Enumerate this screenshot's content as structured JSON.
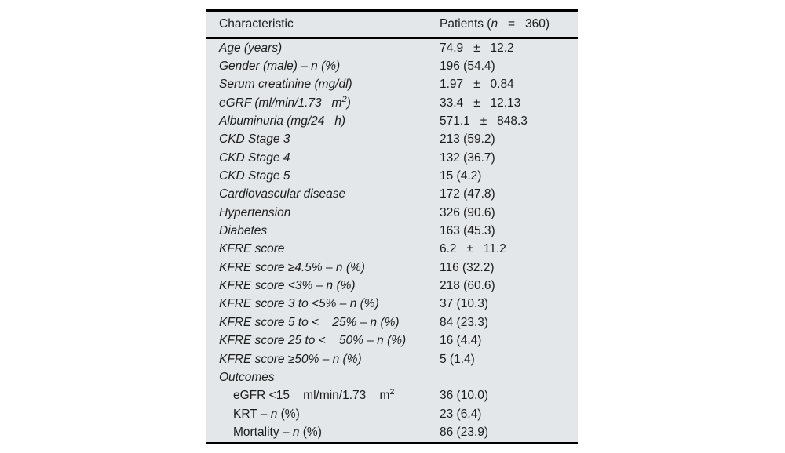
{
  "colors": {
    "table-bg": "#e3e7ea",
    "rule": "#000000",
    "text": "#1c1c1c"
  },
  "table": {
    "header": {
      "characteristic": "Characteristic",
      "patients_parts": [
        {
          "text": "Patients ("
        },
        {
          "text": "n",
          "italic": true
        },
        {
          "text": "   =   360)"
        }
      ]
    },
    "rows": [
      {
        "italic": true,
        "parts": [
          {
            "text": "Age (years)"
          }
        ],
        "value": "74.9   ±   12.2"
      },
      {
        "italic": true,
        "parts": [
          {
            "text": "Gender (male) – n (%)"
          }
        ],
        "value": "196 (54.4)"
      },
      {
        "italic": true,
        "parts": [
          {
            "text": "Serum creatinine (mg/dl)"
          }
        ],
        "value": "1.97   ±   0.84"
      },
      {
        "italic": true,
        "parts": [
          {
            "text": "eGRF (ml/min/1.73   m"
          },
          {
            "text": "2",
            "sup": true
          },
          {
            "text": ")"
          }
        ],
        "value": "33.4   ±   12.13"
      },
      {
        "italic": true,
        "parts": [
          {
            "text": "Albuminuria (mg/24   h)"
          }
        ],
        "value": "571.1   ±   848.3"
      },
      {
        "italic": true,
        "parts": [
          {
            "text": "CKD Stage 3"
          }
        ],
        "value": "213 (59.2)"
      },
      {
        "italic": true,
        "parts": [
          {
            "text": "CKD Stage 4"
          }
        ],
        "value": "132 (36.7)"
      },
      {
        "italic": true,
        "parts": [
          {
            "text": "CKD Stage 5"
          }
        ],
        "value": "15 (4.2)"
      },
      {
        "italic": true,
        "parts": [
          {
            "text": "Cardiovascular disease"
          }
        ],
        "value": "172 (47.8)"
      },
      {
        "italic": true,
        "parts": [
          {
            "text": "Hypertension"
          }
        ],
        "value": "326 (90.6)"
      },
      {
        "italic": true,
        "parts": [
          {
            "text": "Diabetes"
          }
        ],
        "value": "163 (45.3)"
      },
      {
        "italic": true,
        "parts": [
          {
            "text": "KFRE score"
          }
        ],
        "value": "6.2   ±   11.2"
      },
      {
        "italic": true,
        "parts": [
          {
            "text": "KFRE score ≥4.5% – n (%)"
          }
        ],
        "value": "116 (32.2)"
      },
      {
        "italic": true,
        "parts": [
          {
            "text": "KFRE score <3% – n (%)"
          }
        ],
        "value": "218 (60.6)"
      },
      {
        "italic": true,
        "parts": [
          {
            "text": "KFRE score 3 to <5% – n (%)"
          }
        ],
        "value": "37 (10.3)"
      },
      {
        "italic": true,
        "parts": [
          {
            "text": "KFRE score 5 to <    25% – n (%)"
          }
        ],
        "value": "84 (23.3)"
      },
      {
        "italic": true,
        "parts": [
          {
            "text": "KFRE score 25 to <    50% – n (%)"
          }
        ],
        "value": "16 (4.4)"
      },
      {
        "italic": true,
        "parts": [
          {
            "text": "KFRE score ≥50% – n (%)"
          }
        ],
        "value": "5 (1.4)"
      },
      {
        "italic": true,
        "parts": [
          {
            "text": "Outcomes"
          }
        ],
        "value": ""
      },
      {
        "indent": true,
        "parts": [
          {
            "text": "eGFR <15    ml/min/1.73    m"
          },
          {
            "text": "2",
            "sup": true
          }
        ],
        "value": "36 (10.0)"
      },
      {
        "indent": true,
        "parts": [
          {
            "text": "KRT – "
          },
          {
            "text": "n",
            "italic": true
          },
          {
            "text": " (%)"
          }
        ],
        "value": "23 (6.4)"
      },
      {
        "indent": true,
        "parts": [
          {
            "text": "Mortality – "
          },
          {
            "text": "n",
            "italic": true
          },
          {
            "text": " (%)"
          }
        ],
        "value": "86 (23.9)"
      }
    ]
  }
}
